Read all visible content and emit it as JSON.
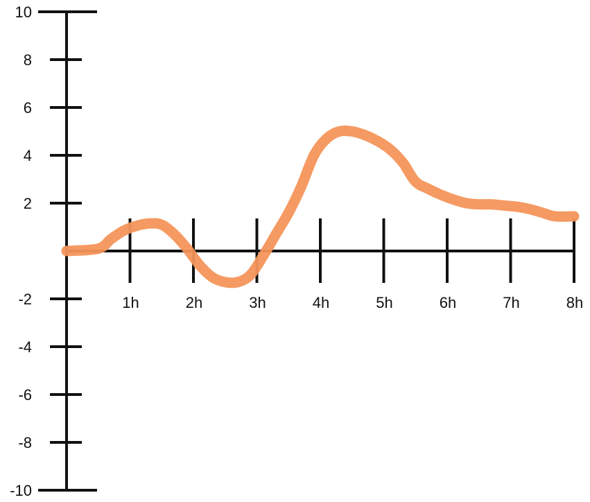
{
  "chart_data": {
    "type": "line",
    "title": "",
    "xlabel": "",
    "ylabel": "",
    "xlim": [
      0,
      8
    ],
    "ylim": [
      -10,
      10
    ],
    "grid": false,
    "x_ticks": [
      {
        "value": 1,
        "label": "1h"
      },
      {
        "value": 2,
        "label": "2h"
      },
      {
        "value": 3,
        "label": "3h"
      },
      {
        "value": 4,
        "label": "4h"
      },
      {
        "value": 5,
        "label": "5h"
      },
      {
        "value": 6,
        "label": "6h"
      },
      {
        "value": 7,
        "label": "7h"
      },
      {
        "value": 8,
        "label": "8h"
      }
    ],
    "y_ticks": [
      {
        "value": 10,
        "label": "10"
      },
      {
        "value": 8,
        "label": "8"
      },
      {
        "value": 6,
        "label": "6"
      },
      {
        "value": 4,
        "label": "4"
      },
      {
        "value": 2,
        "label": "2"
      },
      {
        "value": -2,
        "label": "-2"
      },
      {
        "value": -4,
        "label": "-4"
      },
      {
        "value": -6,
        "label": "-6"
      },
      {
        "value": -8,
        "label": "-8"
      },
      {
        "value": -10,
        "label": "-10"
      }
    ],
    "series": [
      {
        "color": "#f4955a",
        "x": [
          0,
          0.5,
          0.7,
          0.9,
          1.1,
          1.3,
          1.5,
          1.7,
          1.9,
          2.1,
          2.3,
          2.5,
          2.7,
          2.9,
          3.1,
          3.3,
          3.5,
          3.7,
          3.9,
          4.1,
          4.3,
          4.5,
          4.7,
          4.9,
          5.1,
          5.3,
          5.5,
          5.7,
          5.9,
          6.1,
          6.3,
          6.5,
          6.7,
          6.9,
          7.1,
          7.3,
          7.5,
          7.7,
          8.0
        ],
        "y": [
          0.0,
          0.1,
          0.5,
          0.85,
          1.05,
          1.15,
          1.1,
          0.7,
          0.1,
          -0.6,
          -1.1,
          -1.3,
          -1.3,
          -1.0,
          -0.2,
          0.7,
          1.6,
          2.7,
          4.0,
          4.7,
          5.0,
          5.0,
          4.85,
          4.6,
          4.25,
          3.7,
          2.9,
          2.6,
          2.35,
          2.15,
          2.0,
          1.95,
          1.95,
          1.9,
          1.85,
          1.75,
          1.6,
          1.45,
          1.45
        ]
      }
    ]
  }
}
